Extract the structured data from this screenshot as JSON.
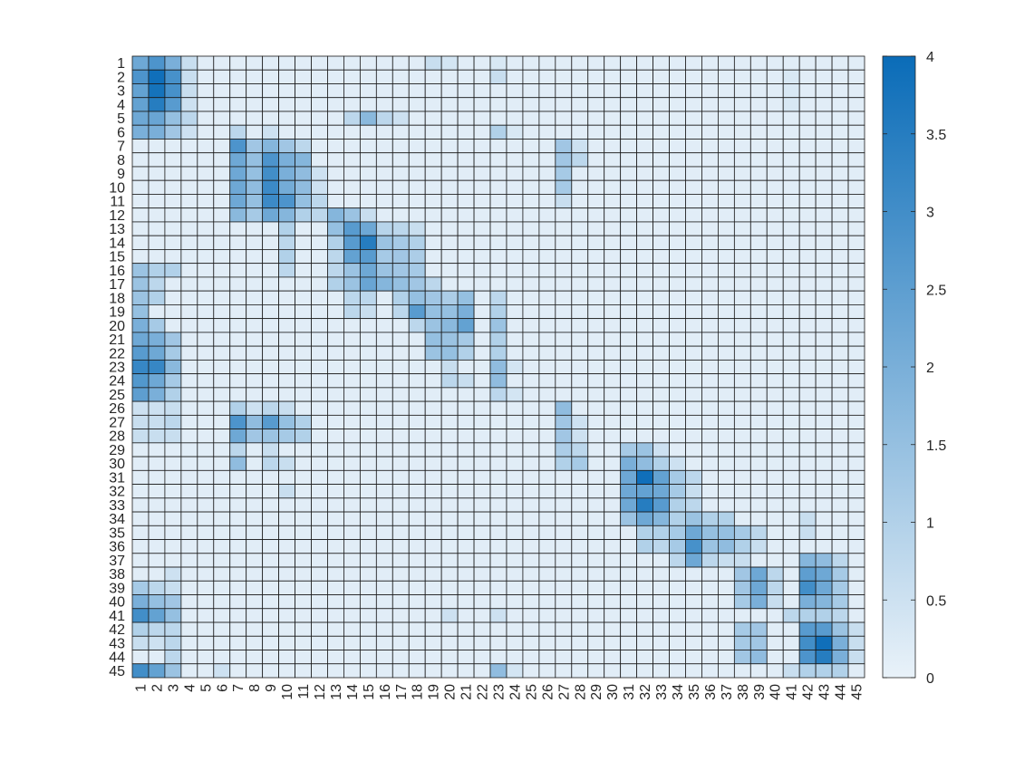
{
  "chart_data": {
    "type": "heatmap",
    "title": "",
    "xlabel": "",
    "ylabel": "",
    "x_labels": [
      "1",
      "2",
      "3",
      "4",
      "5",
      "6",
      "7",
      "8",
      "9",
      "10",
      "11",
      "12",
      "13",
      "14",
      "15",
      "16",
      "17",
      "18",
      "19",
      "20",
      "21",
      "22",
      "23",
      "24",
      "25",
      "26",
      "27",
      "28",
      "29",
      "30",
      "31",
      "32",
      "33",
      "34",
      "35",
      "36",
      "37",
      "38",
      "39",
      "40",
      "41",
      "42",
      "43",
      "44",
      "45"
    ],
    "y_labels": [
      "1",
      "2",
      "3",
      "4",
      "5",
      "6",
      "7",
      "8",
      "9",
      "10",
      "11",
      "12",
      "13",
      "14",
      "15",
      "16",
      "17",
      "18",
      "19",
      "20",
      "21",
      "22",
      "23",
      "24",
      "25",
      "26",
      "27",
      "28",
      "29",
      "30",
      "31",
      "32",
      "33",
      "34",
      "35",
      "36",
      "37",
      "38",
      "39",
      "40",
      "41",
      "42",
      "43",
      "44",
      "45"
    ],
    "colorbar": {
      "min": 0,
      "max": 4,
      "ticks": [
        "0",
        "0.5",
        "1",
        "1.5",
        "2",
        "2.5",
        "3",
        "3.5",
        "4"
      ]
    },
    "colors": {
      "low": "#e9f2f9",
      "high": "#0a6cb8",
      "grid": "#1a1a1a",
      "text": "#262626"
    },
    "background_value": 0.15,
    "values": [
      [
        1,
        1,
        2.2
      ],
      [
        1,
        2,
        2.8
      ],
      [
        1,
        3,
        2.0
      ],
      [
        1,
        4,
        0.6
      ],
      [
        1,
        19,
        0.6
      ],
      [
        1,
        20,
        0.4
      ],
      [
        1,
        23,
        0.3
      ],
      [
        2,
        1,
        2.8
      ],
      [
        2,
        2,
        3.9
      ],
      [
        2,
        3,
        2.9
      ],
      [
        2,
        4,
        0.6
      ],
      [
        2,
        23,
        0.6
      ],
      [
        2,
        41,
        0.3
      ],
      [
        3,
        1,
        2.4
      ],
      [
        3,
        2,
        3.8
      ],
      [
        3,
        3,
        2.9
      ],
      [
        3,
        4,
        0.6
      ],
      [
        3,
        41,
        0.3
      ],
      [
        4,
        1,
        2.4
      ],
      [
        4,
        2,
        3.5
      ],
      [
        4,
        3,
        2.6
      ],
      [
        4,
        4,
        0.5
      ],
      [
        4,
        41,
        0.3
      ],
      [
        5,
        1,
        2.2
      ],
      [
        5,
        2,
        2.3
      ],
      [
        5,
        3,
        1.5
      ],
      [
        5,
        4,
        0.8
      ],
      [
        5,
        14,
        0.8
      ],
      [
        5,
        15,
        1.7
      ],
      [
        5,
        16,
        0.8
      ],
      [
        5,
        17,
        0.5
      ],
      [
        6,
        1,
        2.0
      ],
      [
        6,
        2,
        2.0
      ],
      [
        6,
        3,
        1.3
      ],
      [
        6,
        4,
        0.5
      ],
      [
        6,
        7,
        0.8
      ],
      [
        6,
        9,
        0.5
      ],
      [
        6,
        23,
        1.0
      ],
      [
        6,
        24,
        0.3
      ],
      [
        7,
        7,
        2.8
      ],
      [
        7,
        8,
        1.3
      ],
      [
        7,
        9,
        1.8
      ],
      [
        7,
        10,
        1.3
      ],
      [
        7,
        11,
        0.8
      ],
      [
        7,
        27,
        1.3
      ],
      [
        7,
        28,
        0.5
      ],
      [
        8,
        7,
        2.2
      ],
      [
        8,
        8,
        1.5
      ],
      [
        8,
        9,
        2.8
      ],
      [
        8,
        10,
        2.0
      ],
      [
        8,
        11,
        1.8
      ],
      [
        8,
        27,
        1.3
      ],
      [
        8,
        28,
        0.8
      ],
      [
        9,
        7,
        2.2
      ],
      [
        9,
        8,
        1.5
      ],
      [
        9,
        9,
        3.0
      ],
      [
        9,
        10,
        2.0
      ],
      [
        9,
        11,
        1.6
      ],
      [
        9,
        12,
        0.5
      ],
      [
        9,
        27,
        1.2
      ],
      [
        10,
        7,
        2.2
      ],
      [
        10,
        8,
        1.6
      ],
      [
        10,
        9,
        3.1
      ],
      [
        10,
        10,
        2.1
      ],
      [
        10,
        11,
        1.6
      ],
      [
        10,
        12,
        0.5
      ],
      [
        10,
        27,
        1.2
      ],
      [
        11,
        7,
        2.2
      ],
      [
        11,
        8,
        1.5
      ],
      [
        11,
        9,
        3.1
      ],
      [
        11,
        10,
        2.8
      ],
      [
        11,
        11,
        1.5
      ],
      [
        11,
        12,
        0.8
      ],
      [
        11,
        27,
        0.6
      ],
      [
        12,
        7,
        1.7
      ],
      [
        12,
        8,
        1.2
      ],
      [
        12,
        9,
        2.2
      ],
      [
        12,
        10,
        1.8
      ],
      [
        12,
        11,
        1.0
      ],
      [
        12,
        12,
        0.8
      ],
      [
        12,
        13,
        1.8
      ],
      [
        12,
        14,
        1.4
      ],
      [
        12,
        15,
        0.6
      ],
      [
        13,
        10,
        1.0
      ],
      [
        13,
        13,
        1.5
      ],
      [
        13,
        14,
        2.6
      ],
      [
        13,
        15,
        2.2
      ],
      [
        13,
        16,
        0.9
      ],
      [
        13,
        17,
        0.8
      ],
      [
        13,
        18,
        0.6
      ],
      [
        14,
        10,
        0.8
      ],
      [
        14,
        13,
        1.0
      ],
      [
        14,
        14,
        2.6
      ],
      [
        14,
        15,
        3.5
      ],
      [
        14,
        16,
        1.4
      ],
      [
        14,
        17,
        1.2
      ],
      [
        14,
        18,
        1.0
      ],
      [
        15,
        10,
        1.0
      ],
      [
        15,
        13,
        0.8
      ],
      [
        15,
        14,
        2.4
      ],
      [
        15,
        15,
        2.6
      ],
      [
        15,
        16,
        1.2
      ],
      [
        15,
        17,
        1.3
      ],
      [
        15,
        18,
        1.1
      ],
      [
        16,
        1,
        1.4
      ],
      [
        16,
        2,
        1.0
      ],
      [
        16,
        3,
        1.0
      ],
      [
        16,
        10,
        0.8
      ],
      [
        16,
        13,
        0.8
      ],
      [
        16,
        14,
        1.4
      ],
      [
        16,
        15,
        2.2
      ],
      [
        16,
        16,
        1.4
      ],
      [
        16,
        17,
        1.3
      ],
      [
        16,
        18,
        1.2
      ],
      [
        17,
        1,
        1.4
      ],
      [
        17,
        2,
        0.8
      ],
      [
        17,
        13,
        1.0
      ],
      [
        17,
        14,
        1.4
      ],
      [
        17,
        15,
        2.3
      ],
      [
        17,
        16,
        1.8
      ],
      [
        17,
        17,
        1.5
      ],
      [
        17,
        18,
        1.3
      ],
      [
        17,
        19,
        0.8
      ],
      [
        18,
        1,
        1.4
      ],
      [
        18,
        2,
        1.0
      ],
      [
        18,
        14,
        0.8
      ],
      [
        18,
        15,
        0.8
      ],
      [
        18,
        17,
        1.0
      ],
      [
        18,
        18,
        1.5
      ],
      [
        18,
        19,
        1.3
      ],
      [
        18,
        20,
        1.1
      ],
      [
        18,
        21,
        1.5
      ],
      [
        18,
        23,
        0.8
      ],
      [
        19,
        1,
        1.5
      ],
      [
        19,
        14,
        0.8
      ],
      [
        19,
        15,
        0.6
      ],
      [
        19,
        17,
        0.8
      ],
      [
        19,
        18,
        2.6
      ],
      [
        19,
        19,
        1.5
      ],
      [
        19,
        20,
        1.5
      ],
      [
        19,
        21,
        2.0
      ],
      [
        19,
        23,
        1.0
      ],
      [
        20,
        1,
        2.0
      ],
      [
        20,
        2,
        1.2
      ],
      [
        20,
        18,
        0.8
      ],
      [
        20,
        19,
        1.4
      ],
      [
        20,
        20,
        1.7
      ],
      [
        20,
        21,
        2.4
      ],
      [
        20,
        23,
        1.4
      ],
      [
        21,
        1,
        2.2
      ],
      [
        21,
        2,
        2.0
      ],
      [
        21,
        3,
        1.3
      ],
      [
        21,
        19,
        1.5
      ],
      [
        21,
        20,
        1.4
      ],
      [
        21,
        21,
        1.2
      ],
      [
        21,
        23,
        1.0
      ],
      [
        22,
        1,
        2.6
      ],
      [
        22,
        2,
        2.2
      ],
      [
        22,
        3,
        1.2
      ],
      [
        22,
        19,
        1.4
      ],
      [
        22,
        20,
        1.5
      ],
      [
        22,
        21,
        1.0
      ],
      [
        22,
        23,
        1.0
      ],
      [
        23,
        1,
        3.2
      ],
      [
        23,
        2,
        3.2
      ],
      [
        23,
        3,
        1.7
      ],
      [
        23,
        20,
        0.6
      ],
      [
        23,
        23,
        1.6
      ],
      [
        23,
        24,
        0.4
      ],
      [
        24,
        1,
        2.7
      ],
      [
        24,
        2,
        2.2
      ],
      [
        24,
        3,
        1.2
      ],
      [
        24,
        20,
        0.8
      ],
      [
        24,
        21,
        0.6
      ],
      [
        24,
        23,
        1.6
      ],
      [
        25,
        1,
        2.5
      ],
      [
        25,
        2,
        2.0
      ],
      [
        25,
        3,
        1.0
      ],
      [
        25,
        23,
        0.8
      ],
      [
        25,
        24,
        0.4
      ],
      [
        26,
        1,
        0.5
      ],
      [
        26,
        2,
        0.5
      ],
      [
        26,
        3,
        0.6
      ],
      [
        26,
        7,
        1.0
      ],
      [
        26,
        8,
        0.5
      ],
      [
        26,
        9,
        0.8
      ],
      [
        26,
        10,
        0.6
      ],
      [
        26,
        27,
        1.6
      ],
      [
        27,
        1,
        0.6
      ],
      [
        27,
        2,
        0.6
      ],
      [
        27,
        3,
        0.8
      ],
      [
        27,
        7,
        2.8
      ],
      [
        27,
        8,
        1.6
      ],
      [
        27,
        9,
        2.6
      ],
      [
        27,
        10,
        1.5
      ],
      [
        27,
        11,
        1.0
      ],
      [
        27,
        27,
        1.3
      ],
      [
        27,
        28,
        0.5
      ],
      [
        28,
        1,
        0.6
      ],
      [
        28,
        2,
        0.6
      ],
      [
        28,
        3,
        0.6
      ],
      [
        28,
        7,
        2.2
      ],
      [
        28,
        8,
        1.3
      ],
      [
        28,
        9,
        1.4
      ],
      [
        28,
        10,
        1.2
      ],
      [
        28,
        11,
        1.0
      ],
      [
        28,
        27,
        1.3
      ],
      [
        28,
        28,
        0.5
      ],
      [
        29,
        7,
        0.8
      ],
      [
        29,
        9,
        0.6
      ],
      [
        29,
        27,
        1.1
      ],
      [
        29,
        28,
        0.8
      ],
      [
        29,
        31,
        1.2
      ],
      [
        29,
        32,
        1.4
      ],
      [
        29,
        33,
        0.5
      ],
      [
        30,
        7,
        1.6
      ],
      [
        30,
        9,
        0.8
      ],
      [
        30,
        10,
        0.6
      ],
      [
        30,
        27,
        1.0
      ],
      [
        30,
        28,
        1.2
      ],
      [
        30,
        31,
        2.0
      ],
      [
        30,
        32,
        1.6
      ],
      [
        30,
        33,
        1.0
      ],
      [
        30,
        34,
        0.5
      ],
      [
        31,
        31,
        2.2
      ],
      [
        31,
        32,
        3.9
      ],
      [
        31,
        33,
        2.4
      ],
      [
        31,
        34,
        1.2
      ],
      [
        31,
        35,
        0.8
      ],
      [
        32,
        10,
        0.6
      ],
      [
        32,
        31,
        2.2
      ],
      [
        32,
        32,
        2.4
      ],
      [
        32,
        33,
        2.2
      ],
      [
        32,
        34,
        1.2
      ],
      [
        32,
        35,
        0.6
      ],
      [
        33,
        31,
        2.2
      ],
      [
        33,
        32,
        3.5
      ],
      [
        33,
        33,
        2.6
      ],
      [
        33,
        34,
        1.0
      ],
      [
        33,
        35,
        0.8
      ],
      [
        34,
        31,
        1.4
      ],
      [
        34,
        32,
        2.2
      ],
      [
        34,
        33,
        1.8
      ],
      [
        34,
        34,
        1.0
      ],
      [
        34,
        35,
        1.4
      ],
      [
        34,
        36,
        1.0
      ],
      [
        34,
        37,
        1.0
      ],
      [
        34,
        42,
        0.6
      ],
      [
        35,
        32,
        1.0
      ],
      [
        35,
        33,
        1.0
      ],
      [
        35,
        34,
        1.2
      ],
      [
        35,
        35,
        2.2
      ],
      [
        35,
        36,
        1.5
      ],
      [
        35,
        37,
        1.5
      ],
      [
        35,
        38,
        1.2
      ],
      [
        35,
        39,
        0.8
      ],
      [
        35,
        42,
        0.6
      ],
      [
        36,
        32,
        1.0
      ],
      [
        36,
        33,
        0.8
      ],
      [
        36,
        34,
        1.2
      ],
      [
        36,
        35,
        2.9
      ],
      [
        36,
        36,
        1.4
      ],
      [
        36,
        37,
        1.6
      ],
      [
        36,
        38,
        1.0
      ],
      [
        36,
        39,
        0.6
      ],
      [
        37,
        34,
        0.8
      ],
      [
        37,
        35,
        2.2
      ],
      [
        37,
        36,
        0.8
      ],
      [
        37,
        37,
        0.6
      ],
      [
        37,
        38,
        0.6
      ],
      [
        37,
        42,
        1.8
      ],
      [
        37,
        43,
        1.6
      ],
      [
        37,
        44,
        0.8
      ],
      [
        38,
        3,
        0.5
      ],
      [
        38,
        38,
        1.3
      ],
      [
        38,
        39,
        2.2
      ],
      [
        38,
        40,
        0.8
      ],
      [
        38,
        42,
        2.5
      ],
      [
        38,
        43,
        2.2
      ],
      [
        38,
        44,
        1.2
      ],
      [
        39,
        1,
        1.2
      ],
      [
        39,
        2,
        0.8
      ],
      [
        39,
        3,
        0.6
      ],
      [
        39,
        38,
        1.3
      ],
      [
        39,
        39,
        2.2
      ],
      [
        39,
        40,
        0.8
      ],
      [
        39,
        42,
        3.0
      ],
      [
        39,
        43,
        2.2
      ],
      [
        39,
        44,
        1.2
      ],
      [
        40,
        1,
        2.0
      ],
      [
        40,
        2,
        1.5
      ],
      [
        40,
        3,
        1.3
      ],
      [
        40,
        38,
        1.2
      ],
      [
        40,
        39,
        2.0
      ],
      [
        40,
        40,
        0.6
      ],
      [
        40,
        42,
        2.0
      ],
      [
        40,
        43,
        1.8
      ],
      [
        40,
        44,
        1.2
      ],
      [
        41,
        1,
        3.0
      ],
      [
        41,
        2,
        2.4
      ],
      [
        41,
        3,
        1.5
      ],
      [
        41,
        20,
        0.5
      ],
      [
        41,
        23,
        0.5
      ],
      [
        41,
        41,
        0.8
      ],
      [
        41,
        42,
        1.0
      ],
      [
        41,
        43,
        1.0
      ],
      [
        41,
        44,
        0.8
      ],
      [
        42,
        1,
        1.0
      ],
      [
        42,
        2,
        0.8
      ],
      [
        42,
        3,
        0.8
      ],
      [
        42,
        38,
        1.2
      ],
      [
        42,
        39,
        1.3
      ],
      [
        42,
        42,
        2.6
      ],
      [
        42,
        43,
        2.6
      ],
      [
        42,
        44,
        1.4
      ],
      [
        42,
        45,
        0.6
      ],
      [
        43,
        1,
        0.6
      ],
      [
        43,
        2,
        0.5
      ],
      [
        43,
        3,
        0.8
      ],
      [
        43,
        38,
        1.2
      ],
      [
        43,
        39,
        1.3
      ],
      [
        43,
        42,
        3.0
      ],
      [
        43,
        43,
        3.9
      ],
      [
        43,
        44,
        2.0
      ],
      [
        43,
        45,
        0.6
      ],
      [
        44,
        3,
        0.8
      ],
      [
        44,
        38,
        1.3
      ],
      [
        44,
        39,
        1.6
      ],
      [
        44,
        42,
        2.8
      ],
      [
        44,
        43,
        3.5
      ],
      [
        44,
        44,
        2.0
      ],
      [
        44,
        45,
        0.6
      ],
      [
        45,
        1,
        3.0
      ],
      [
        45,
        2,
        2.4
      ],
      [
        45,
        3,
        1.4
      ],
      [
        45,
        6,
        0.5
      ],
      [
        45,
        23,
        1.6
      ],
      [
        45,
        24,
        0.4
      ],
      [
        45,
        41,
        0.6
      ],
      [
        45,
        42,
        1.0
      ],
      [
        45,
        43,
        1.0
      ],
      [
        45,
        44,
        1.0
      ]
    ]
  }
}
